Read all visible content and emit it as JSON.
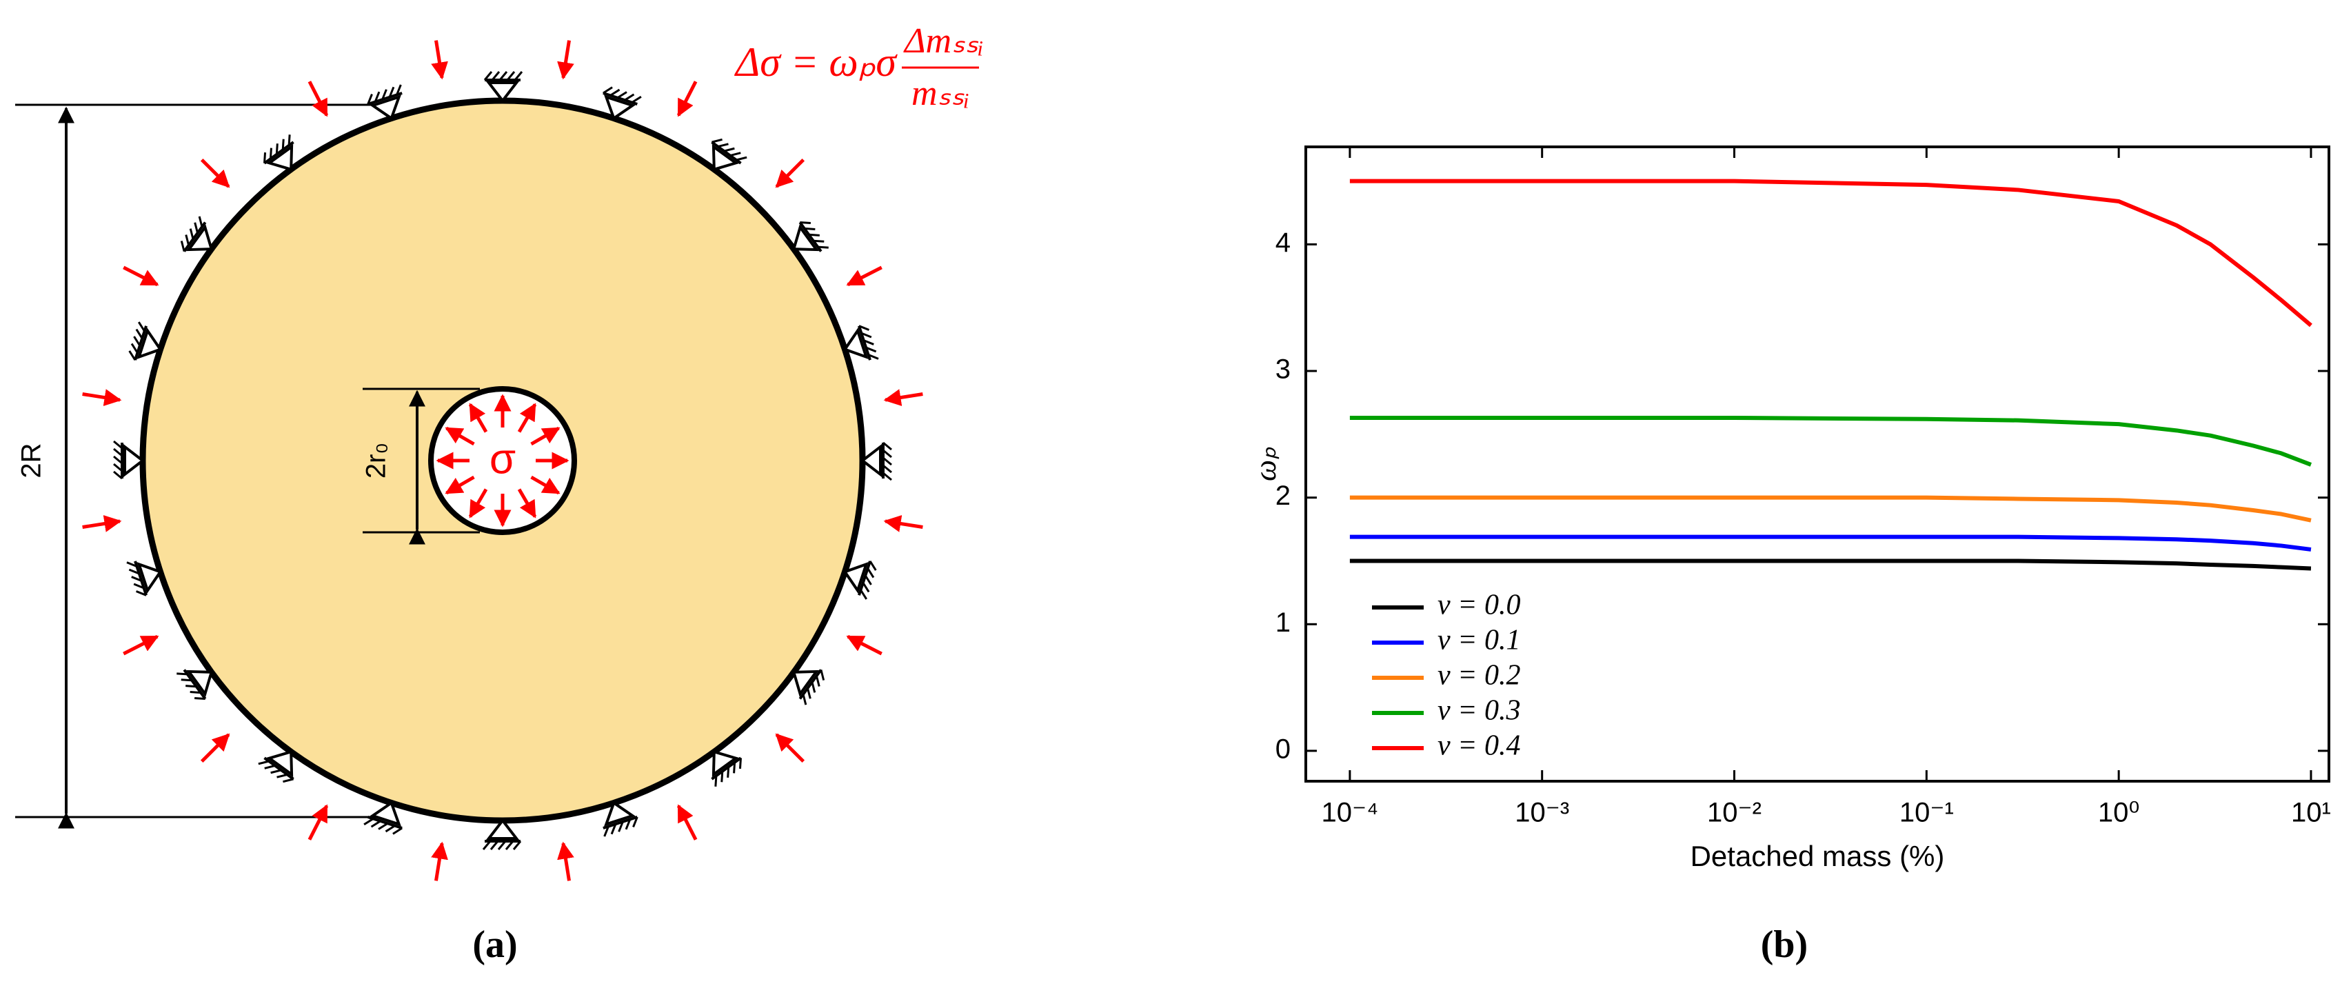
{
  "diagram": {
    "equation": {
      "lhs": "Δσ = ωₚσ",
      "numerator": "Δmₛₛᵢ",
      "denominator": "mₛₛᵢ"
    },
    "outer_dimension": "2R",
    "inner_dimension": "2r₀",
    "inner_load": "σ",
    "caption": "(a)"
  },
  "chart_data": {
    "type": "line",
    "caption": "(b)",
    "x_label": "Detached mass (%)",
    "y_label": "ωₚ",
    "log_x": true,
    "x": [
      0.0001,
      0.001,
      0.01,
      0.1,
      0.3,
      1,
      2,
      3,
      5,
      7,
      10
    ],
    "series": [
      {
        "name": "ν = 0.0",
        "color": "#000000",
        "values": [
          1.5,
          1.5,
          1.5,
          1.5,
          1.5,
          1.49,
          1.48,
          1.47,
          1.46,
          1.45,
          1.44
        ]
      },
      {
        "name": "ν = 0.1",
        "color": "#0000ff",
        "values": [
          1.69,
          1.69,
          1.69,
          1.69,
          1.69,
          1.68,
          1.67,
          1.66,
          1.64,
          1.62,
          1.59
        ]
      },
      {
        "name": "ν = 0.2",
        "color": "#ff7f0e",
        "values": [
          2.0,
          2.0,
          2.0,
          2.0,
          1.99,
          1.98,
          1.96,
          1.94,
          1.9,
          1.87,
          1.82
        ]
      },
      {
        "name": "ν = 0.3",
        "color": "#00a000",
        "values": [
          2.63,
          2.63,
          2.63,
          2.62,
          2.61,
          2.58,
          2.53,
          2.49,
          2.41,
          2.35,
          2.26
        ]
      },
      {
        "name": "ν = 0.4",
        "color": "#ff0000",
        "values": [
          4.5,
          4.5,
          4.5,
          4.47,
          4.43,
          4.34,
          4.15,
          4.0,
          3.74,
          3.56,
          3.36
        ]
      }
    ],
    "xlim": [
      5.9e-05,
      12.4
    ],
    "xticks": [
      {
        "value": 0.0001,
        "label": "10⁻⁴"
      },
      {
        "value": 0.001,
        "label": "10⁻³"
      },
      {
        "value": 0.01,
        "label": "10⁻²"
      },
      {
        "value": 0.1,
        "label": "10⁻¹"
      },
      {
        "value": 1,
        "label": "10⁰"
      },
      {
        "value": 10,
        "label": "10¹"
      }
    ],
    "ylim": [
      -0.24,
      4.77
    ],
    "yticks": [
      0,
      1,
      2,
      3,
      4
    ],
    "legend": "lower left"
  }
}
